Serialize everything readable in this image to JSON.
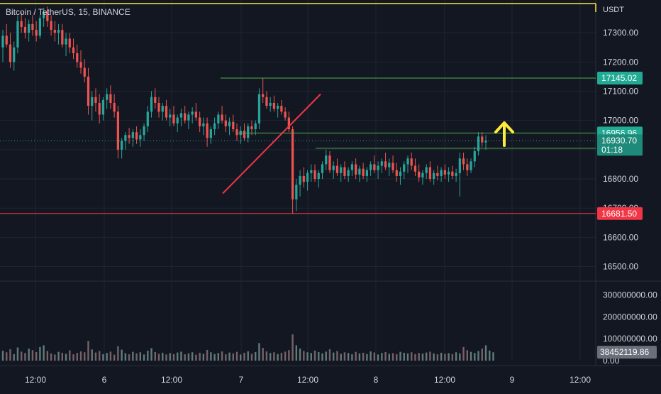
{
  "symbol": {
    "label": "Bitcoin / TetherUS, 15, BINANCE"
  },
  "colors": {
    "background": "#131722",
    "grid": "#1f2432",
    "up": "#26a69a",
    "down": "#ef5350",
    "volume": "#8f939e",
    "axis_text": "#d1d4dc",
    "green_line": "#4caf50",
    "red_line": "#f23645",
    "yellow": "#ffeb3b"
  },
  "chart_data": {
    "type": "candlestick",
    "currency_label": "USDT",
    "y_ticks": [
      "17300.00",
      "17200.00",
      "17100.00",
      "17000.00",
      "16900.00",
      "16800.00",
      "16700.00",
      "16600.00",
      "16500.00"
    ],
    "y_tick_values": [
      17300,
      17200,
      17100,
      17000,
      16900,
      16800,
      16700,
      16600,
      16500
    ],
    "ylim": [
      16460,
      17400
    ],
    "x_ticks": [
      "12:00",
      "6",
      "12:00",
      "7",
      "12:00",
      "8",
      "12:00",
      "9",
      "12:00"
    ],
    "volume_ticks": [
      "300000000.00",
      "200000000.00",
      "100000000.00",
      "0.00"
    ],
    "volume_tick_values": [
      300000000,
      200000000,
      100000000,
      0
    ],
    "volume_max": 350000000,
    "horizontal_levels": [
      {
        "name": "resistance-level",
        "price": 17145.02,
        "label": "17145.02",
        "color": "green",
        "x_start_frac": 0.37
      },
      {
        "name": "breakout-level",
        "price": 16956.96,
        "label": "16956.96",
        "color": "green",
        "x_start_frac": 0.4
      },
      {
        "name": "range-top-level",
        "price": 16904.82,
        "label": "16904.82",
        "color": "green",
        "x_start_frac": 0.53
      },
      {
        "name": "support-level",
        "price": 16681.5,
        "label": "16681.50",
        "color": "red",
        "x_start_frac": 0.0
      },
      {
        "name": "top-yellow-level",
        "price": 17400,
        "label": "",
        "color": "yellow",
        "x_start_frac": 0.0
      }
    ],
    "last_price": {
      "value": 16930.7,
      "label": "16930.70",
      "countdown": "01:18"
    },
    "last_volume": {
      "value": 38452119.86,
      "label": "38452119.86"
    },
    "trendline": {
      "start_price": 16750,
      "end_price": 17090
    },
    "candles": [
      {
        "o": 17250,
        "h": 17310,
        "l": 17200,
        "c": 17290
      },
      {
        "o": 17290,
        "h": 17330,
        "l": 17250,
        "c": 17260
      },
      {
        "o": 17260,
        "h": 17300,
        "l": 17180,
        "c": 17200
      },
      {
        "o": 17200,
        "h": 17270,
        "l": 17170,
        "c": 17250
      },
      {
        "o": 17250,
        "h": 17360,
        "l": 17230,
        "c": 17340
      },
      {
        "o": 17340,
        "h": 17370,
        "l": 17300,
        "c": 17320
      },
      {
        "o": 17320,
        "h": 17350,
        "l": 17280,
        "c": 17300
      },
      {
        "o": 17300,
        "h": 17345,
        "l": 17270,
        "c": 17330
      },
      {
        "o": 17330,
        "h": 17360,
        "l": 17290,
        "c": 17310
      },
      {
        "o": 17310,
        "h": 17340,
        "l": 17270,
        "c": 17290
      },
      {
        "o": 17290,
        "h": 17360,
        "l": 17280,
        "c": 17350
      },
      {
        "o": 17350,
        "h": 17385,
        "l": 17320,
        "c": 17370
      },
      {
        "o": 17370,
        "h": 17390,
        "l": 17320,
        "c": 17340
      },
      {
        "o": 17340,
        "h": 17360,
        "l": 17290,
        "c": 17310
      },
      {
        "o": 17310,
        "h": 17340,
        "l": 17270,
        "c": 17300
      },
      {
        "o": 17300,
        "h": 17330,
        "l": 17260,
        "c": 17310
      },
      {
        "o": 17310,
        "h": 17330,
        "l": 17250,
        "c": 17260
      },
      {
        "o": 17260,
        "h": 17300,
        "l": 17220,
        "c": 17280
      },
      {
        "o": 17280,
        "h": 17300,
        "l": 17230,
        "c": 17250
      },
      {
        "o": 17250,
        "h": 17280,
        "l": 17210,
        "c": 17230
      },
      {
        "o": 17230,
        "h": 17260,
        "l": 17180,
        "c": 17200
      },
      {
        "o": 17200,
        "h": 17240,
        "l": 17160,
        "c": 17180
      },
      {
        "o": 17180,
        "h": 17210,
        "l": 17130,
        "c": 17150
      },
      {
        "o": 17150,
        "h": 17180,
        "l": 17020,
        "c": 17050
      },
      {
        "o": 17050,
        "h": 17100,
        "l": 17000,
        "c": 17080
      },
      {
        "o": 17080,
        "h": 17110,
        "l": 17030,
        "c": 17060
      },
      {
        "o": 17060,
        "h": 17090,
        "l": 16990,
        "c": 17020
      },
      {
        "o": 17020,
        "h": 17080,
        "l": 17000,
        "c": 17070
      },
      {
        "o": 17070,
        "h": 17110,
        "l": 17040,
        "c": 17090
      },
      {
        "o": 17090,
        "h": 17120,
        "l": 17040,
        "c": 17060
      },
      {
        "o": 17060,
        "h": 17090,
        "l": 17010,
        "c": 17030
      },
      {
        "o": 17030,
        "h": 17050,
        "l": 16870,
        "c": 16900
      },
      {
        "o": 16900,
        "h": 16940,
        "l": 16870,
        "c": 16930
      },
      {
        "o": 16930,
        "h": 16960,
        "l": 16900,
        "c": 16950
      },
      {
        "o": 16950,
        "h": 16975,
        "l": 16920,
        "c": 16940
      },
      {
        "o": 16940,
        "h": 16970,
        "l": 16910,
        "c": 16960
      },
      {
        "o": 16960,
        "h": 16980,
        "l": 16920,
        "c": 16935
      },
      {
        "o": 16935,
        "h": 16970,
        "l": 16910,
        "c": 16950
      },
      {
        "o": 16950,
        "h": 16990,
        "l": 16930,
        "c": 16980
      },
      {
        "o": 16980,
        "h": 17050,
        "l": 16960,
        "c": 17030
      },
      {
        "o": 17030,
        "h": 17100,
        "l": 17010,
        "c": 17080
      },
      {
        "o": 17080,
        "h": 17110,
        "l": 17040,
        "c": 17060
      },
      {
        "o": 17060,
        "h": 17080,
        "l": 17010,
        "c": 17030
      },
      {
        "o": 17030,
        "h": 17060,
        "l": 17000,
        "c": 17050
      },
      {
        "o": 17050,
        "h": 17070,
        "l": 17000,
        "c": 17010
      },
      {
        "o": 17010,
        "h": 17040,
        "l": 16980,
        "c": 17020
      },
      {
        "o": 17020,
        "h": 17050,
        "l": 16980,
        "c": 16990
      },
      {
        "o": 16990,
        "h": 17020,
        "l": 16960,
        "c": 17010
      },
      {
        "o": 17010,
        "h": 17040,
        "l": 16980,
        "c": 17025
      },
      {
        "o": 17025,
        "h": 17050,
        "l": 16990,
        "c": 17000
      },
      {
        "o": 17000,
        "h": 17030,
        "l": 16970,
        "c": 17020
      },
      {
        "o": 17020,
        "h": 17045,
        "l": 16990,
        "c": 17030
      },
      {
        "o": 17030,
        "h": 17060,
        "l": 17000,
        "c": 17010
      },
      {
        "o": 17010,
        "h": 17030,
        "l": 16960,
        "c": 16980
      },
      {
        "o": 16980,
        "h": 17010,
        "l": 16950,
        "c": 16990
      },
      {
        "o": 16990,
        "h": 17010,
        "l": 16910,
        "c": 16940
      },
      {
        "o": 16940,
        "h": 16980,
        "l": 16920,
        "c": 16970
      },
      {
        "o": 16970,
        "h": 17010,
        "l": 16950,
        "c": 16990
      },
      {
        "o": 16990,
        "h": 17030,
        "l": 16970,
        "c": 17020
      },
      {
        "o": 17020,
        "h": 17050,
        "l": 16990,
        "c": 17000
      },
      {
        "o": 17000,
        "h": 17020,
        "l": 16960,
        "c": 16980
      },
      {
        "o": 16980,
        "h": 17010,
        "l": 16950,
        "c": 16995
      },
      {
        "o": 16995,
        "h": 17020,
        "l": 16960,
        "c": 16970
      },
      {
        "o": 16970,
        "h": 16990,
        "l": 16930,
        "c": 16950
      },
      {
        "o": 16950,
        "h": 16980,
        "l": 16920,
        "c": 16965
      },
      {
        "o": 16965,
        "h": 16990,
        "l": 16930,
        "c": 16940
      },
      {
        "o": 16940,
        "h": 16990,
        "l": 16925,
        "c": 16980
      },
      {
        "o": 16980,
        "h": 17000,
        "l": 16950,
        "c": 16970
      },
      {
        "o": 16970,
        "h": 17000,
        "l": 16950,
        "c": 16990
      },
      {
        "o": 16990,
        "h": 17110,
        "l": 16970,
        "c": 17090
      },
      {
        "o": 17090,
        "h": 17145,
        "l": 17060,
        "c": 17080
      },
      {
        "o": 17080,
        "h": 17100,
        "l": 17040,
        "c": 17050
      },
      {
        "o": 17050,
        "h": 17080,
        "l": 17030,
        "c": 17060
      },
      {
        "o": 17060,
        "h": 17085,
        "l": 17030,
        "c": 17040
      },
      {
        "o": 17040,
        "h": 17060,
        "l": 17010,
        "c": 17050
      },
      {
        "o": 17050,
        "h": 17070,
        "l": 17020,
        "c": 17030
      },
      {
        "o": 17030,
        "h": 17045,
        "l": 17000,
        "c": 17010
      },
      {
        "o": 17010,
        "h": 17030,
        "l": 16960,
        "c": 16970
      },
      {
        "o": 16970,
        "h": 16980,
        "l": 16680,
        "c": 16730
      },
      {
        "o": 16730,
        "h": 16800,
        "l": 16690,
        "c": 16780
      },
      {
        "o": 16780,
        "h": 16830,
        "l": 16740,
        "c": 16810
      },
      {
        "o": 16810,
        "h": 16840,
        "l": 16770,
        "c": 16790
      },
      {
        "o": 16790,
        "h": 16830,
        "l": 16760,
        "c": 16820
      },
      {
        "o": 16820,
        "h": 16850,
        "l": 16790,
        "c": 16830
      },
      {
        "o": 16830,
        "h": 16850,
        "l": 16790,
        "c": 16800
      },
      {
        "o": 16800,
        "h": 16830,
        "l": 16770,
        "c": 16820
      },
      {
        "o": 16820,
        "h": 16860,
        "l": 16800,
        "c": 16850
      },
      {
        "o": 16850,
        "h": 16900,
        "l": 16830,
        "c": 16880
      },
      {
        "o": 16880,
        "h": 16895,
        "l": 16820,
        "c": 16830
      },
      {
        "o": 16830,
        "h": 16860,
        "l": 16800,
        "c": 16845
      },
      {
        "o": 16845,
        "h": 16870,
        "l": 16810,
        "c": 16820
      },
      {
        "o": 16820,
        "h": 16850,
        "l": 16790,
        "c": 16840
      },
      {
        "o": 16840,
        "h": 16860,
        "l": 16800,
        "c": 16810
      },
      {
        "o": 16810,
        "h": 16840,
        "l": 16790,
        "c": 16830
      },
      {
        "o": 16830,
        "h": 16860,
        "l": 16810,
        "c": 16850
      },
      {
        "o": 16850,
        "h": 16870,
        "l": 16800,
        "c": 16815
      },
      {
        "o": 16815,
        "h": 16845,
        "l": 16790,
        "c": 16835
      },
      {
        "o": 16835,
        "h": 16855,
        "l": 16800,
        "c": 16810
      },
      {
        "o": 16810,
        "h": 16840,
        "l": 16790,
        "c": 16830
      },
      {
        "o": 16830,
        "h": 16860,
        "l": 16810,
        "c": 16850
      },
      {
        "o": 16850,
        "h": 16880,
        "l": 16820,
        "c": 16830
      },
      {
        "o": 16830,
        "h": 16860,
        "l": 16800,
        "c": 16845
      },
      {
        "o": 16845,
        "h": 16870,
        "l": 16820,
        "c": 16860
      },
      {
        "o": 16860,
        "h": 16890,
        "l": 16830,
        "c": 16840
      },
      {
        "o": 16840,
        "h": 16870,
        "l": 16810,
        "c": 16855
      },
      {
        "o": 16855,
        "h": 16880,
        "l": 16820,
        "c": 16830
      },
      {
        "o": 16830,
        "h": 16855,
        "l": 16790,
        "c": 16810
      },
      {
        "o": 16810,
        "h": 16840,
        "l": 16780,
        "c": 16825
      },
      {
        "o": 16825,
        "h": 16860,
        "l": 16800,
        "c": 16850
      },
      {
        "o": 16850,
        "h": 16880,
        "l": 16820,
        "c": 16870
      },
      {
        "o": 16870,
        "h": 16890,
        "l": 16830,
        "c": 16845
      },
      {
        "o": 16845,
        "h": 16870,
        "l": 16810,
        "c": 16825
      },
      {
        "o": 16825,
        "h": 16850,
        "l": 16790,
        "c": 16805
      },
      {
        "o": 16805,
        "h": 16830,
        "l": 16780,
        "c": 16820
      },
      {
        "o": 16820,
        "h": 16850,
        "l": 16800,
        "c": 16840
      },
      {
        "o": 16840,
        "h": 16860,
        "l": 16790,
        "c": 16800
      },
      {
        "o": 16800,
        "h": 16830,
        "l": 16780,
        "c": 16820
      },
      {
        "o": 16820,
        "h": 16845,
        "l": 16795,
        "c": 16810
      },
      {
        "o": 16810,
        "h": 16840,
        "l": 16790,
        "c": 16830
      },
      {
        "o": 16830,
        "h": 16850,
        "l": 16800,
        "c": 16815
      },
      {
        "o": 16815,
        "h": 16840,
        "l": 16790,
        "c": 16825
      },
      {
        "o": 16825,
        "h": 16845,
        "l": 16800,
        "c": 16810
      },
      {
        "o": 16810,
        "h": 16835,
        "l": 16790,
        "c": 16820
      },
      {
        "o": 16820,
        "h": 16890,
        "l": 16740,
        "c": 16870
      },
      {
        "o": 16870,
        "h": 16890,
        "l": 16830,
        "c": 16850
      },
      {
        "o": 16850,
        "h": 16870,
        "l": 16810,
        "c": 16830
      },
      {
        "o": 16830,
        "h": 16870,
        "l": 16820,
        "c": 16860
      },
      {
        "o": 16860,
        "h": 16910,
        "l": 16840,
        "c": 16895
      },
      {
        "o": 16895,
        "h": 16960,
        "l": 16880,
        "c": 16945
      },
      {
        "o": 16945,
        "h": 16960,
        "l": 16910,
        "c": 16925
      },
      {
        "o": 16925,
        "h": 16950,
        "l": 16900,
        "c": 16931
      }
    ],
    "volumes": [
      45,
      38,
      52,
      30,
      60,
      41,
      35,
      55,
      48,
      39,
      62,
      70,
      44,
      33,
      28,
      40,
      36,
      31,
      47,
      29,
      35,
      42,
      38,
      90,
      51,
      37,
      44,
      30,
      35,
      41,
      27,
      66,
      50,
      34,
      29,
      40,
      33,
      38,
      28,
      45,
      57,
      39,
      31,
      36,
      28,
      34,
      30,
      37,
      41,
      29,
      33,
      38,
      27,
      36,
      31,
      49,
      38,
      30,
      35,
      42,
      29,
      37,
      33,
      40,
      28,
      36,
      43,
      31,
      39,
      80,
      58,
      42,
      35,
      38,
      30,
      36,
      41,
      48,
      120,
      70,
      55,
      44,
      38,
      35,
      46,
      39,
      33,
      41,
      52,
      37,
      44,
      31,
      38,
      35,
      29,
      40,
      33,
      36,
      30,
      42,
      37,
      28,
      35,
      39,
      31,
      34,
      29,
      40,
      36,
      33,
      38,
      30,
      35,
      32,
      37,
      41,
      33,
      29,
      36,
      31,
      34,
      30,
      38,
      33,
      62,
      48,
      40,
      35,
      44,
      55,
      70,
      46,
      38
    ]
  }
}
